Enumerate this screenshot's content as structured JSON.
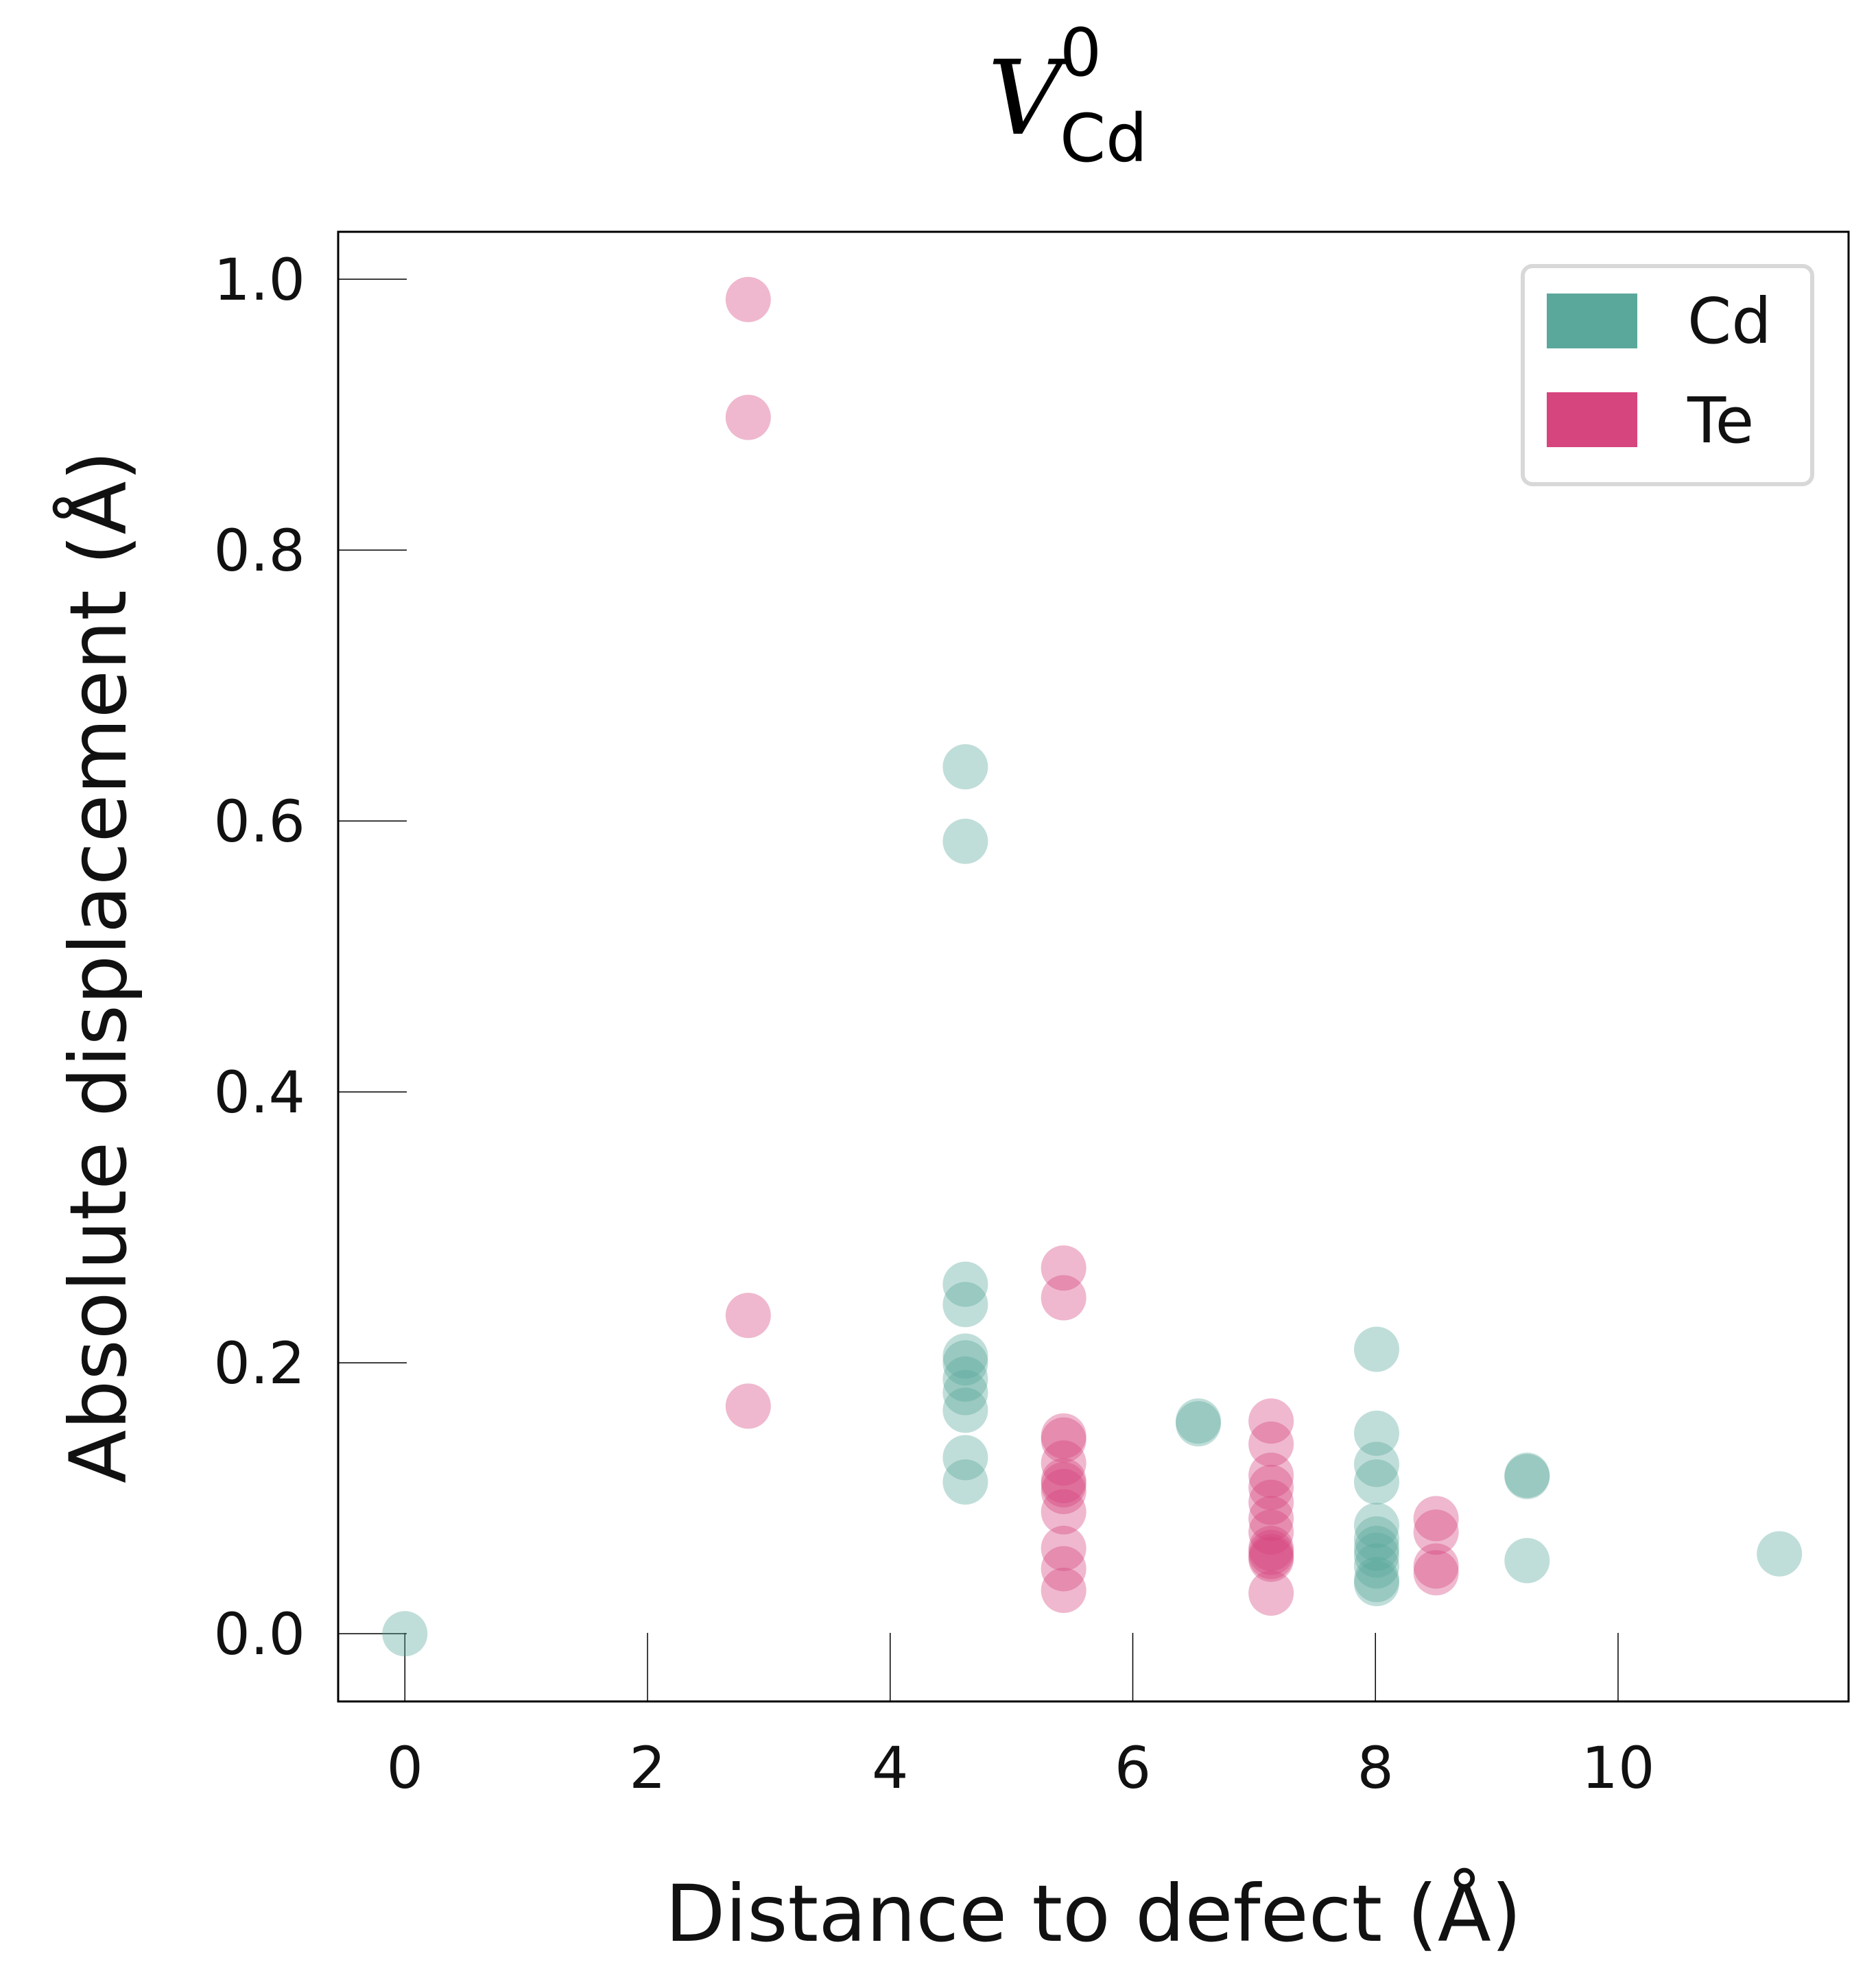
{
  "chart_data": {
    "type": "scatter",
    "title": {
      "main": "V",
      "superscript": "0",
      "subscript": "Cd"
    },
    "xlabel": "Distance to defect (Å)",
    "ylabel": "Absolute displacement (Å)",
    "xlim": [
      -0.55,
      11.9
    ],
    "ylim": [
      -0.05,
      1.035
    ],
    "xticks": [
      "0",
      "2",
      "4",
      "6",
      "8",
      "10"
    ],
    "yticks": [
      "0.0",
      "0.2",
      "0.4",
      "0.6",
      "0.8",
      "1.0"
    ],
    "grid": false,
    "legend": {
      "position": "top-right",
      "entries": [
        "Cd",
        "Te"
      ]
    },
    "series": [
      {
        "name": "Cd",
        "color": "#5aa89c",
        "points": [
          [
            0.0,
            0.0
          ],
          [
            4.62,
            0.64
          ],
          [
            4.62,
            0.585
          ],
          [
            4.62,
            0.258
          ],
          [
            4.62,
            0.243
          ],
          [
            4.62,
            0.205
          ],
          [
            4.62,
            0.2
          ],
          [
            4.62,
            0.188
          ],
          [
            4.62,
            0.178
          ],
          [
            4.62,
            0.165
          ],
          [
            4.62,
            0.13
          ],
          [
            4.62,
            0.112
          ],
          [
            6.54,
            0.157
          ],
          [
            6.54,
            0.155
          ],
          [
            8.01,
            0.21
          ],
          [
            8.01,
            0.148
          ],
          [
            8.01,
            0.125
          ],
          [
            8.01,
            0.112
          ],
          [
            8.01,
            0.08
          ],
          [
            8.01,
            0.07
          ],
          [
            8.01,
            0.063
          ],
          [
            8.01,
            0.058
          ],
          [
            8.01,
            0.05
          ],
          [
            8.01,
            0.04
          ],
          [
            8.01,
            0.037
          ],
          [
            9.25,
            0.117
          ],
          [
            9.25,
            0.116
          ],
          [
            9.25,
            0.054
          ],
          [
            11.33,
            0.059
          ]
        ]
      },
      {
        "name": "Te",
        "color": "#d6457e",
        "points": [
          [
            2.83,
            0.985
          ],
          [
            2.83,
            0.898
          ],
          [
            2.83,
            0.235
          ],
          [
            2.83,
            0.168
          ],
          [
            5.43,
            0.27
          ],
          [
            5.43,
            0.248
          ],
          [
            5.43,
            0.146
          ],
          [
            5.43,
            0.143
          ],
          [
            5.43,
            0.126
          ],
          [
            5.43,
            0.113
          ],
          [
            5.43,
            0.11
          ],
          [
            5.43,
            0.105
          ],
          [
            5.43,
            0.09
          ],
          [
            5.43,
            0.063
          ],
          [
            5.43,
            0.048
          ],
          [
            5.43,
            0.032
          ],
          [
            7.14,
            0.157
          ],
          [
            7.14,
            0.14
          ],
          [
            7.14,
            0.117
          ],
          [
            7.14,
            0.108
          ],
          [
            7.14,
            0.097
          ],
          [
            7.14,
            0.085
          ],
          [
            7.14,
            0.075
          ],
          [
            7.14,
            0.063
          ],
          [
            7.14,
            0.06
          ],
          [
            7.14,
            0.057
          ],
          [
            7.14,
            0.055
          ],
          [
            7.14,
            0.03
          ],
          [
            8.5,
            0.085
          ],
          [
            8.5,
            0.075
          ],
          [
            8.5,
            0.05
          ],
          [
            8.5,
            0.045
          ]
        ]
      }
    ]
  }
}
